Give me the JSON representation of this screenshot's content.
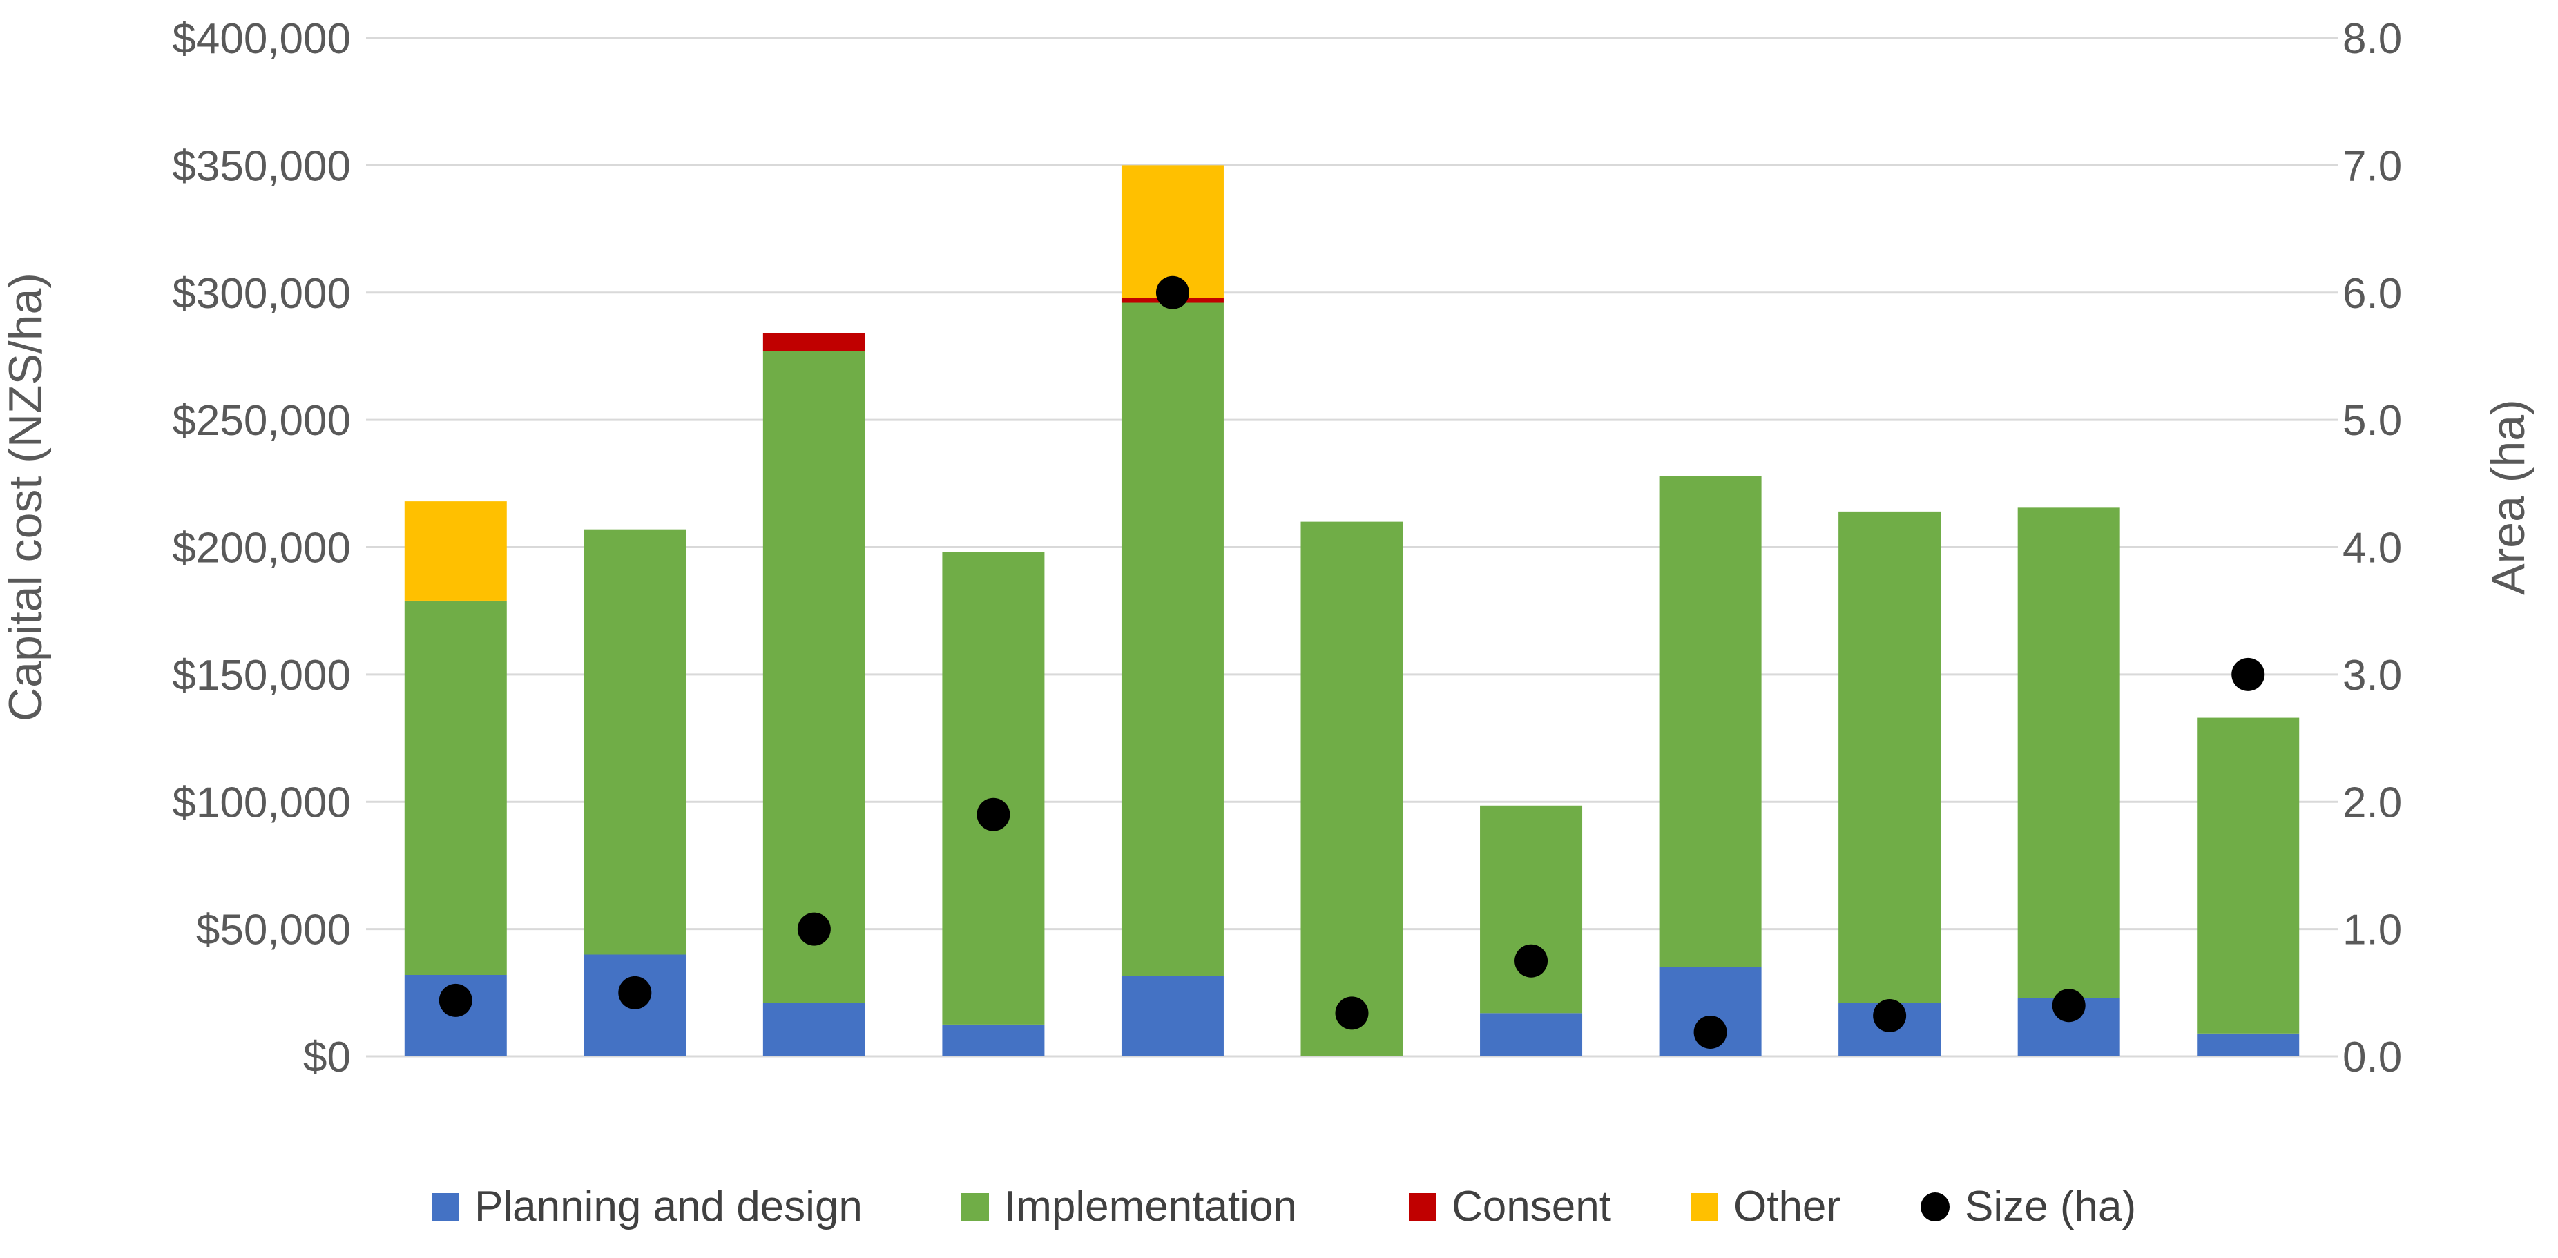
{
  "chart_data": {
    "type": "bar",
    "stacked": true,
    "categories": [
      "",
      "",
      "",
      "",
      "",
      "",
      "",
      "",
      "",
      "",
      ""
    ],
    "series": [
      {
        "name": "Planning and design",
        "color": "#4472C4",
        "values": [
          32000,
          40000,
          21000,
          12500,
          31500,
          0,
          17000,
          35000,
          21000,
          23000,
          9000
        ]
      },
      {
        "name": "Implementation",
        "color": "#70AD47",
        "values": [
          147000,
          167000,
          256000,
          185500,
          264500,
          210000,
          81500,
          193000,
          193000,
          192500,
          124000
        ]
      },
      {
        "name": "Consent",
        "color": "#C00000",
        "values": [
          0,
          0,
          7000,
          0,
          2000,
          0,
          0,
          0,
          0,
          0,
          0
        ]
      },
      {
        "name": "Other",
        "color": "#FFC000",
        "values": [
          39000,
          0,
          0,
          0,
          52000,
          0,
          0,
          0,
          0,
          0,
          0
        ]
      }
    ],
    "scatter_series": {
      "name": "Size (ha)",
      "color": "#000000",
      "axis": "right",
      "values": [
        0.44,
        0.5,
        1.0,
        1.9,
        6.0,
        0.34,
        0.75,
        0.19,
        0.32,
        0.4,
        3.0
      ]
    },
    "left_axis": {
      "title": "Capital cost (NZS/ha)",
      "ylim": [
        0,
        400000
      ],
      "ticks": [
        0,
        50000,
        100000,
        150000,
        200000,
        250000,
        300000,
        350000,
        400000
      ],
      "tick_labels": [
        "$0",
        "$50,000",
        "$100,000",
        "$150,000",
        "$200,000",
        "$250,000",
        "$300,000",
        "$350,000",
        "$400,000"
      ]
    },
    "right_axis": {
      "title": "Area (ha)",
      "ylim": [
        0,
        8
      ],
      "ticks": [
        0,
        1,
        2,
        3,
        4,
        5,
        6,
        7,
        8
      ],
      "tick_labels": [
        "0.0",
        "1.0",
        "2.0",
        "3.0",
        "4.0",
        "5.0",
        "6.0",
        "7.0",
        "8.0"
      ]
    },
    "grid": true,
    "legend": {
      "position": "bottom",
      "entries": [
        {
          "label": "Planning and design",
          "color": "#4472C4",
          "marker": "square"
        },
        {
          "label": "Implementation",
          "color": "#70AD47",
          "marker": "square"
        },
        {
          "label": "Consent",
          "color": "#C00000",
          "marker": "square"
        },
        {
          "label": "Other",
          "color": "#FFC000",
          "marker": "square"
        },
        {
          "label": "Size (ha)",
          "color": "#000000",
          "marker": "circle"
        }
      ]
    },
    "gridline_color": "#D9D9D9"
  }
}
